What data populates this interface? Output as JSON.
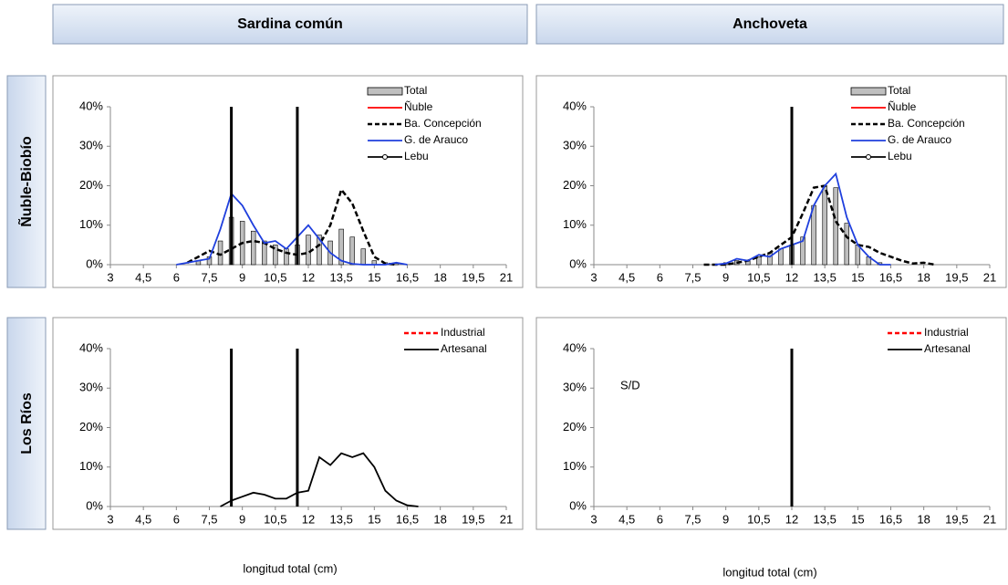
{
  "column_titles": [
    "Sardina común",
    "Anchoveta"
  ],
  "row_titles": [
    "Ñuble-Biobío",
    "Los Ríos"
  ],
  "x_axis_labels": [
    "longitud total (cm)",
    "longitud total (cm)"
  ],
  "chart_data": [
    {
      "type": "bar",
      "legend": "top-right",
      "xlim": [
        3,
        21
      ],
      "ylim": [
        0,
        40
      ],
      "xticks": [
        3,
        {
          "value": 4.5,
          "label": "4,5"
        },
        6,
        {
          "value": 7.5,
          "label": "7,5"
        },
        9,
        {
          "value": 10.5,
          "label": "10,5"
        },
        12,
        {
          "value": 13.5,
          "label": "13,5"
        },
        15,
        {
          "value": 16.5,
          "label": "16,5"
        },
        18,
        {
          "value": 19.5,
          "label": "19,5"
        },
        21
      ],
      "yticks": [
        {
          "value": 0,
          "label": "0%"
        },
        {
          "value": 10,
          "label": "10%"
        },
        {
          "value": 20,
          "label": "20%"
        },
        {
          "value": 30,
          "label": "30%"
        },
        {
          "value": 40,
          "label": "40%"
        }
      ],
      "reference_lines": [
        8.5,
        11.5
      ],
      "series": [
        {
          "name": "Total",
          "type": "bar",
          "color": "#bfbfbf",
          "x": [
            7,
            7.5,
            8,
            8.5,
            9,
            9.5,
            10,
            10.5,
            11,
            11.5,
            12,
            12.5,
            13,
            13.5,
            14,
            14.5,
            15,
            15.5,
            16
          ],
          "values": [
            1,
            2,
            6,
            12,
            11,
            8.5,
            6,
            5,
            4,
            5,
            7.5,
            7.5,
            6,
            9,
            7,
            4,
            1,
            0.5,
            0.3
          ]
        },
        {
          "name": "Ñuble",
          "type": "line",
          "color": "#ff0000",
          "x": [],
          "values": []
        },
        {
          "name": "Ba. Concepción",
          "type": "line",
          "dash": true,
          "color": "#000000",
          "x": [
            6.5,
            7,
            7.5,
            8,
            8.5,
            9,
            9.5,
            10,
            10.5,
            11,
            11.5,
            12,
            12.5,
            13,
            13.5,
            14,
            14.5,
            15,
            15.5,
            16
          ],
          "values": [
            0.5,
            2,
            3.5,
            2.5,
            4,
            5.5,
            6,
            5.5,
            4,
            3,
            2.5,
            3,
            5,
            10,
            19,
            15.5,
            8.5,
            2,
            0.3,
            0
          ]
        },
        {
          "name": "G. de Arauco",
          "type": "line",
          "color": "#1f3fdd",
          "x": [
            6,
            6.5,
            7,
            7.5,
            8,
            8.5,
            9,
            9.5,
            10,
            10.5,
            11,
            11.5,
            12,
            12.5,
            13,
            13.5,
            14,
            14.5,
            15,
            15.5,
            16,
            16.5
          ],
          "values": [
            0,
            0.5,
            1,
            1.5,
            9,
            18,
            15,
            10,
            5.5,
            6,
            4,
            7,
            10,
            6.5,
            3,
            1,
            0.2,
            0,
            0,
            0,
            0.5,
            0
          ]
        },
        {
          "name": "Lebu",
          "type": "line",
          "marker": "circle",
          "color": "#000000",
          "x": [],
          "values": []
        }
      ]
    },
    {
      "type": "bar",
      "legend": "top-right",
      "xlim": [
        3,
        21
      ],
      "ylim": [
        0,
        40
      ],
      "xticks": [
        3,
        {
          "value": 4.5,
          "label": "4,5"
        },
        6,
        {
          "value": 7.5,
          "label": "7,5"
        },
        9,
        {
          "value": 10.5,
          "label": "10,5"
        },
        12,
        {
          "value": 13.5,
          "label": "13,5"
        },
        15,
        {
          "value": 16.5,
          "label": "16,5"
        },
        18,
        {
          "value": 19.5,
          "label": "19,5"
        },
        21
      ],
      "yticks": [
        {
          "value": 0,
          "label": "0%"
        },
        {
          "value": 10,
          "label": "10%"
        },
        {
          "value": 20,
          "label": "20%"
        },
        {
          "value": 30,
          "label": "30%"
        },
        {
          "value": 40,
          "label": "40%"
        }
      ],
      "reference_lines": [
        12
      ],
      "series": [
        {
          "name": "Total",
          "type": "bar",
          "color": "#bfbfbf",
          "x": [
            9,
            9.5,
            10,
            10.5,
            11,
            11.5,
            12,
            12.5,
            13,
            13.5,
            14,
            14.5,
            15,
            15.5,
            16
          ],
          "values": [
            0.5,
            1,
            1,
            2,
            3,
            4,
            5,
            7,
            15,
            20,
            19.5,
            10.5,
            5,
            2,
            0.5
          ]
        },
        {
          "name": "Ñuble",
          "type": "line",
          "color": "#ff0000",
          "x": [],
          "values": []
        },
        {
          "name": "Ba. Concepción",
          "type": "line",
          "dash": true,
          "color": "#000000",
          "x": [
            8,
            8.5,
            9,
            9.5,
            10,
            10.5,
            11,
            11.5,
            12,
            12.5,
            13,
            13.5,
            14,
            14.5,
            15,
            15.5,
            16,
            16.5,
            17,
            17.5,
            18,
            18.5
          ],
          "values": [
            0,
            0,
            0,
            0.5,
            1,
            2,
            3,
            5,
            7,
            13,
            19.5,
            20,
            11,
            7,
            5,
            4.5,
            3,
            2,
            1,
            0.3,
            0.5,
            0
          ]
        },
        {
          "name": "G. de Arauco",
          "type": "line",
          "color": "#1f3fdd",
          "x": [
            8.5,
            9,
            9.5,
            10,
            10.5,
            11,
            11.5,
            12,
            12.5,
            13,
            13.5,
            14,
            14.5,
            15,
            15.5,
            16,
            16.5
          ],
          "values": [
            0,
            0.3,
            1.5,
            1,
            2.5,
            2,
            4,
            5,
            6,
            15,
            20,
            23,
            12,
            5,
            2,
            0,
            0
          ]
        },
        {
          "name": "Lebu",
          "type": "line",
          "marker": "circle",
          "color": "#000000",
          "x": [],
          "values": []
        }
      ]
    },
    {
      "type": "line",
      "legend": "top-right",
      "xlim": [
        3,
        21
      ],
      "ylim": [
        0,
        40
      ],
      "xticks": [
        3,
        {
          "value": 4.5,
          "label": "4,5"
        },
        6,
        {
          "value": 7.5,
          "label": "7,5"
        },
        9,
        {
          "value": 10.5,
          "label": "10,5"
        },
        12,
        {
          "value": 13.5,
          "label": "13,5"
        },
        15,
        {
          "value": 16.5,
          "label": "16,5"
        },
        18,
        {
          "value": 19.5,
          "label": "19,5"
        },
        21
      ],
      "yticks": [
        {
          "value": 0,
          "label": "0%"
        },
        {
          "value": 10,
          "label": "10%"
        },
        {
          "value": 20,
          "label": "20%"
        },
        {
          "value": 30,
          "label": "30%"
        },
        {
          "value": 40,
          "label": "40%"
        }
      ],
      "reference_lines": [
        8.5,
        11.5
      ],
      "series": [
        {
          "name": "Industrial",
          "type": "line",
          "dash": true,
          "color": "#ff0000",
          "x": [],
          "values": []
        },
        {
          "name": "Artesanal",
          "type": "line",
          "color": "#000000",
          "x": [
            8,
            8.5,
            9,
            9.5,
            10,
            10.5,
            11,
            11.5,
            12,
            12.5,
            13,
            13.5,
            14,
            14.5,
            15,
            15.5,
            16,
            16.5,
            17
          ],
          "values": [
            0,
            1.5,
            2.5,
            3.5,
            3,
            2,
            2,
            3.5,
            4,
            12.5,
            10.5,
            13.5,
            12.5,
            13.5,
            10,
            4,
            1.5,
            0.3,
            0
          ]
        }
      ]
    },
    {
      "type": "line",
      "legend": "top-right",
      "xlim": [
        3,
        21
      ],
      "ylim": [
        0,
        40
      ],
      "xticks": [
        3,
        {
          "value": 4.5,
          "label": "4,5"
        },
        6,
        {
          "value": 7.5,
          "label": "7,5"
        },
        9,
        {
          "value": 10.5,
          "label": "10,5"
        },
        12,
        {
          "value": 13.5,
          "label": "13,5"
        },
        15,
        {
          "value": 16.5,
          "label": "16,5"
        },
        18,
        {
          "value": 19.5,
          "label": "19,5"
        },
        21
      ],
      "yticks": [
        {
          "value": 0,
          "label": "0%"
        },
        {
          "value": 10,
          "label": "10%"
        },
        {
          "value": 20,
          "label": "20%"
        },
        {
          "value": 30,
          "label": "30%"
        },
        {
          "value": 40,
          "label": "40%"
        }
      ],
      "reference_lines": [
        12
      ],
      "annotations": [
        "S/D"
      ],
      "series": [
        {
          "name": "Industrial",
          "type": "line",
          "dash": true,
          "color": "#ff0000",
          "x": [],
          "values": []
        },
        {
          "name": "Artesanal",
          "type": "line",
          "color": "#000000",
          "x": [],
          "values": []
        }
      ]
    }
  ]
}
